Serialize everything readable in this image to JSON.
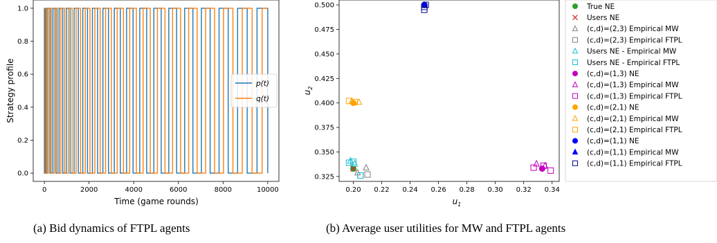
{
  "chart_data": [
    {
      "type": "line",
      "xlabel": "Time (game rounds)",
      "ylabel": "Strategy profile",
      "xlim": [
        -500,
        10500
      ],
      "ylim": [
        -0.05,
        1.05
      ],
      "xticks": [
        0,
        2000,
        4000,
        6000,
        8000,
        10000
      ],
      "xtick_labels": [
        "0",
        "2000",
        "4000",
        "6000",
        "8000",
        "10000"
      ],
      "yticks": [
        0.0,
        0.2,
        0.4,
        0.6,
        0.8,
        1.0
      ],
      "ytick_labels": [
        "0.0",
        "0.2",
        "0.4",
        "0.6",
        "0.8",
        "1.0"
      ],
      "legend_location": "center-right",
      "series": [
        {
          "name": "p(t)",
          "color": "#1f77b4",
          "values_range": [
            0,
            1
          ],
          "switch_times": [
            0,
            120,
            250,
            380,
            520,
            660,
            820,
            980,
            1150,
            1330,
            1520,
            1720,
            1930,
            2150,
            2380,
            2620,
            2870,
            3130,
            3400,
            3680,
            3970,
            4270,
            4580,
            4900,
            5230,
            5570,
            5920,
            6280,
            6650,
            7030,
            7420,
            7820,
            8230,
            8650,
            9080,
            9520,
            10000
          ]
        },
        {
          "name": "q(t)",
          "color": "#ff7f0e",
          "values_range": [
            0,
            1
          ],
          "switch_times": [
            0,
            60,
            180,
            310,
            450,
            590,
            740,
            900,
            1070,
            1240,
            1420,
            1620,
            1830,
            2040,
            2260,
            2500,
            2740,
            3000,
            3260,
            3540,
            3820,
            4120,
            4420,
            4740,
            5060,
            5400,
            5740,
            6100,
            6460,
            6840,
            7220,
            7620,
            8020,
            8440,
            8860,
            9300,
            9750
          ]
        }
      ]
    },
    {
      "type": "scatter",
      "xlabel": "u1",
      "ylabel": "u2",
      "xlim": [
        0.19,
        0.345
      ],
      "ylim": [
        0.32,
        0.505
      ],
      "xticks": [
        0.2,
        0.22,
        0.24,
        0.26,
        0.28,
        0.3,
        0.32,
        0.34
      ],
      "xtick_labels": [
        "0.20",
        "0.22",
        "0.24",
        "0.26",
        "0.28",
        "0.30",
        "0.32",
        "0.34"
      ],
      "yticks": [
        0.325,
        0.35,
        0.375,
        0.4,
        0.425,
        0.45,
        0.475,
        0.5
      ],
      "ytick_labels": [
        "0.325",
        "0.350",
        "0.375",
        "0.400",
        "0.425",
        "0.450",
        "0.475",
        "0.500"
      ],
      "legend_location": "outside-right",
      "series": [
        {
          "name": "True NE",
          "marker": "circle",
          "filled": true,
          "color": "#2ca02c",
          "points": [
            [
              0.2,
              0.333
            ]
          ]
        },
        {
          "name": "Users NE",
          "marker": "x",
          "filled": false,
          "color": "#d62728",
          "points": [
            [
              0.2,
              0.333
            ]
          ]
        },
        {
          "name": "(c,d)=(2,3) Empirical MW",
          "marker": "triangle",
          "filled": false,
          "color": "#7f7f7f",
          "points": [
            [
              0.209,
              0.334
            ],
            [
              0.203,
              0.329
            ]
          ]
        },
        {
          "name": "(c,d)=(2,3) Empirical FTPL",
          "marker": "square",
          "filled": false,
          "color": "#7f7f7f",
          "points": [
            [
              0.21,
              0.327
            ],
            [
              0.205,
              0.326
            ]
          ]
        },
        {
          "name": "Users NE - Empirical MW",
          "marker": "triangle",
          "filled": false,
          "color": "#17becf",
          "points": [
            [
              0.198,
              0.341
            ],
            [
              0.201,
              0.338
            ]
          ]
        },
        {
          "name": "Users NE - Empirical FTPL",
          "marker": "square",
          "filled": false,
          "color": "#17becf",
          "points": [
            [
              0.197,
              0.339
            ],
            [
              0.205,
              0.326
            ],
            [
              0.2,
              0.34
            ]
          ]
        },
        {
          "name": "(c,d)=(1,3) NE",
          "marker": "circle",
          "filled": true,
          "color": "#bf00bf",
          "points": [
            [
              0.333,
              0.333
            ]
          ]
        },
        {
          "name": "(c,d)=(1,3) Empirical MW",
          "marker": "triangle",
          "filled": false,
          "color": "#bf00bf",
          "points": [
            [
              0.329,
              0.338
            ],
            [
              0.335,
              0.336
            ]
          ]
        },
        {
          "name": "(c,d)=(1,3) Empirical FTPL",
          "marker": "square",
          "filled": false,
          "color": "#bf00bf",
          "points": [
            [
              0.327,
              0.334
            ],
            [
              0.339,
              0.331
            ],
            [
              0.334,
              0.336
            ]
          ]
        },
        {
          "name": "(c,d)=(2,1) NE",
          "marker": "circle",
          "filled": true,
          "color": "#ffa500",
          "points": [
            [
              0.2,
              0.4
            ]
          ]
        },
        {
          "name": "(c,d)=(2,1) Empirical MW",
          "marker": "triangle",
          "filled": false,
          "color": "#ffa500",
          "points": [
            [
              0.199,
              0.402
            ],
            [
              0.204,
              0.401
            ]
          ]
        },
        {
          "name": "(c,d)=(2,1) Empirical FTPL",
          "marker": "square",
          "filled": false,
          "color": "#ffa500",
          "points": [
            [
              0.197,
              0.402
            ],
            [
              0.201,
              0.401
            ]
          ]
        },
        {
          "name": "(c,d)=(1,1) NE",
          "marker": "circle",
          "filled": true,
          "color": "#0000ff",
          "points": [
            [
              0.25,
              0.5
            ]
          ]
        },
        {
          "name": "(c,d)=(1,1) Empirical MW",
          "marker": "triangle",
          "filled": true,
          "color": "#0000ff",
          "points": [
            [
              0.25,
              0.5
            ]
          ]
        },
        {
          "name": "(c,d)=(1,1) Empirical FTPL",
          "marker": "square",
          "filled": false,
          "color": "#00008b",
          "points": [
            [
              0.25,
              0.495
            ],
            [
              0.25,
              0.498
            ],
            [
              0.251,
              0.5
            ]
          ]
        }
      ]
    }
  ],
  "captions": {
    "a": "(a) Bid dynamics of FTPL agents",
    "b": "(b) Average user utilities for MW and FTPL agents"
  }
}
